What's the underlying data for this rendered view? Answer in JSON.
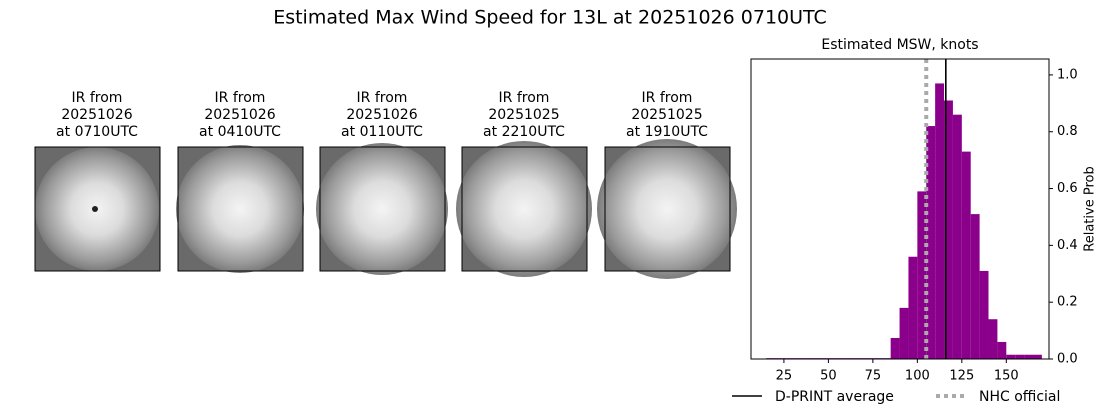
{
  "title": "Estimated Max Wind Speed for 13L at 20251026 0710UTC",
  "panels": [
    {
      "title": [
        "IR from",
        "20251026",
        "at 0710UTC"
      ]
    },
    {
      "title": [
        "IR from",
        "20251026",
        "at 0410UTC"
      ]
    },
    {
      "title": [
        "IR from",
        "20251026",
        "at 0110UTC"
      ]
    },
    {
      "title": [
        "IR from",
        "20251025",
        "at 2210UTC"
      ]
    },
    {
      "title": [
        "IR from",
        "20251025",
        "at 1910UTC"
      ]
    }
  ],
  "chart_data": {
    "type": "histogram",
    "title": "Estimated MSW, knots",
    "y_label": "Relative Prob",
    "color": "#8b008b",
    "bins": [
      15,
      20,
      25,
      30,
      35,
      40,
      45,
      50,
      55,
      60,
      65,
      70,
      75,
      80,
      85,
      90,
      95,
      100,
      105,
      110,
      115,
      120,
      125,
      130,
      135,
      140,
      145,
      150,
      155,
      160,
      165,
      170
    ],
    "values": [
      0.003,
      0.003,
      0.003,
      0.003,
      0.003,
      0.003,
      0.003,
      0.003,
      0.003,
      0.003,
      0.003,
      0.003,
      0.003,
      0.003,
      0.074,
      0.18,
      0.36,
      0.59,
      0.82,
      0.97,
      0.91,
      0.86,
      0.73,
      0.51,
      0.31,
      0.14,
      0.06,
      0.015,
      0.015,
      0.015,
      0.015
    ],
    "xlim": [
      6.5,
      174
    ],
    "xticks": [
      25,
      50,
      75,
      100,
      125,
      150
    ],
    "ylim": [
      0,
      1.056
    ],
    "yticks": [
      {
        "value": 0,
        "label": "0.0"
      },
      0.2,
      0.4,
      0.6,
      0.8,
      {
        "value": 1,
        "label": "1.0"
      }
    ],
    "vlines": [
      {
        "name": "D-PRINT average",
        "value": 116,
        "color": "#000000",
        "style": "solid"
      },
      {
        "name": "NHC official",
        "value": 105,
        "color": "#aaaaaa",
        "style": "dotted"
      }
    ]
  }
}
